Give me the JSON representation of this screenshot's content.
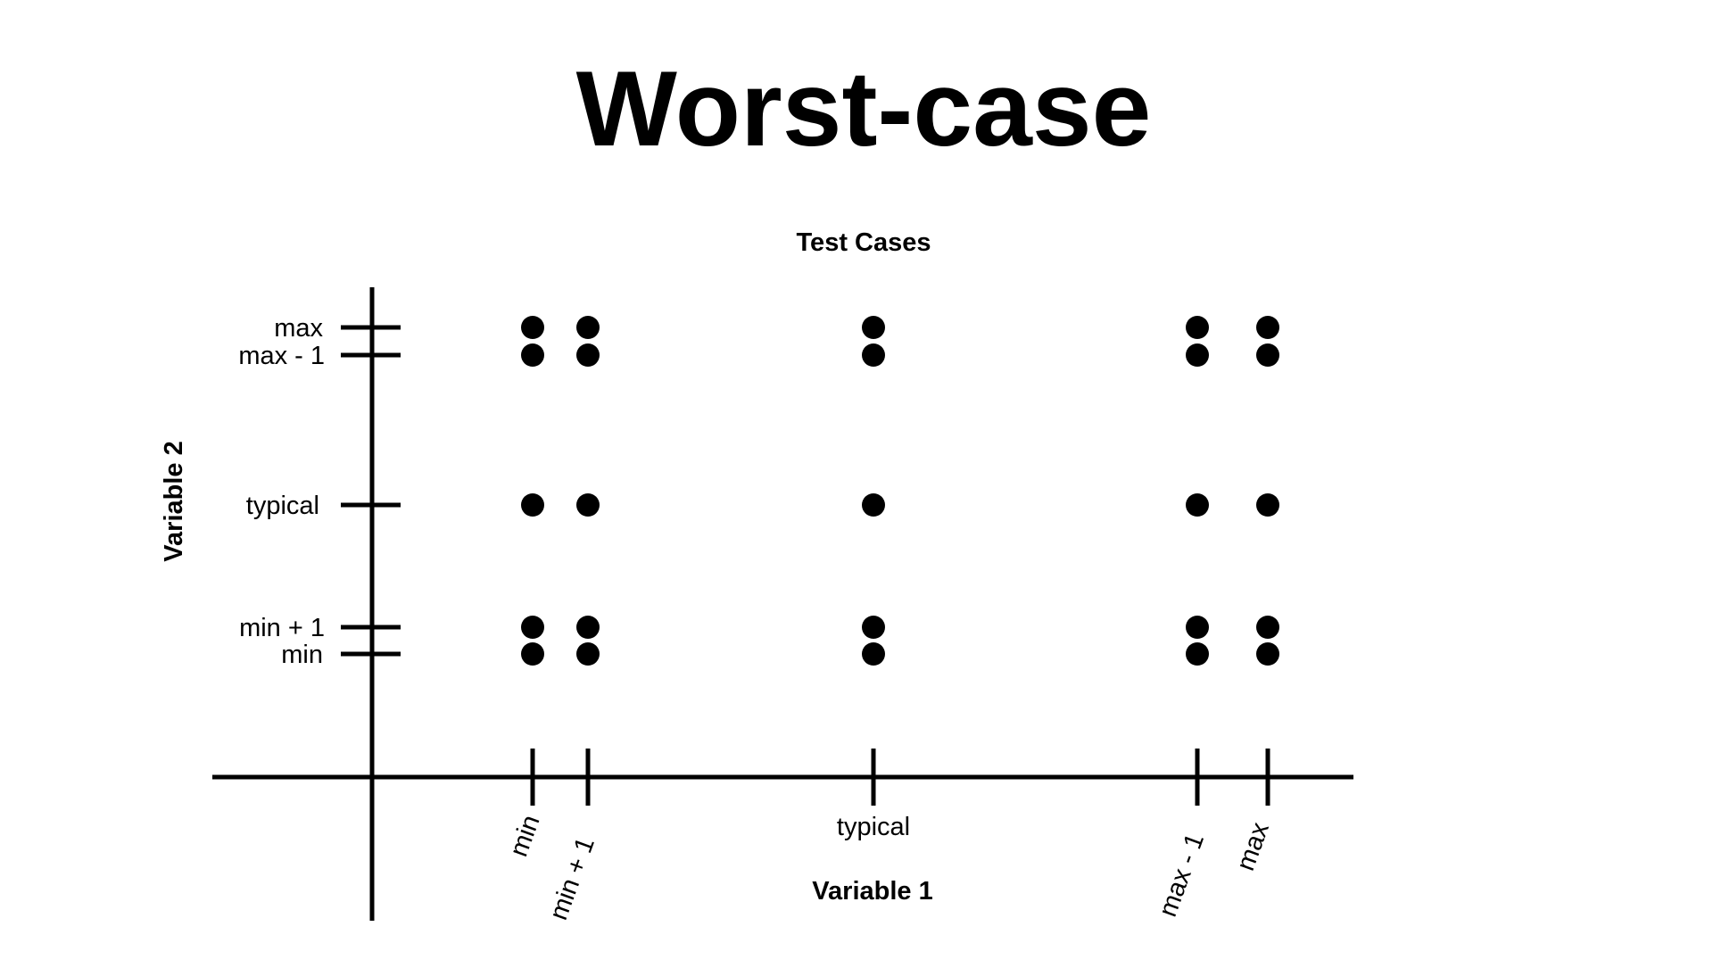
{
  "colors": {
    "background": "#ffffff",
    "ink": "#000000"
  },
  "chart_data": {
    "type": "scatter",
    "title": "Worst-case",
    "subtitle": "Test Cases",
    "xlabel": "Variable 1",
    "ylabel": "Variable 2",
    "x_levels": [
      "min",
      "min + 1",
      "typical",
      "max - 1",
      "max"
    ],
    "y_levels": [
      "max",
      "max - 1",
      "typical",
      "min + 1",
      "min"
    ],
    "grid": false,
    "legend": "none",
    "points": "all combinations of x_levels and y_levels (25 test cases)"
  }
}
